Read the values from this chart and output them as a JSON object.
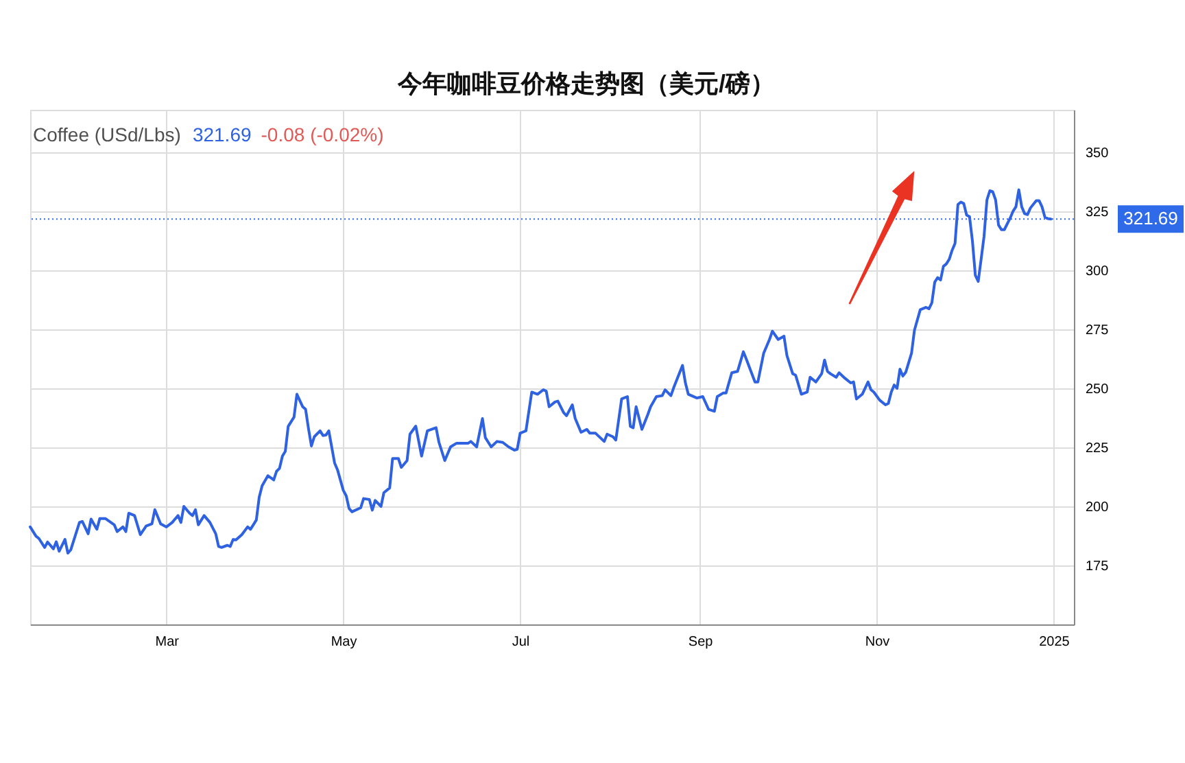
{
  "chart_data": {
    "type": "line",
    "title": "今年咖啡豆价格走势图（美元/磅）",
    "annotations": [
      "Coffee (USd/Lbs)",
      "321.69",
      "-0.08 (-0.02%)"
    ],
    "x": [
      "2024-01-14",
      "2024-01-16",
      "2024-01-17",
      "2024-01-19",
      "2024-01-20",
      "2024-01-22",
      "2024-01-23",
      "2024-01-24",
      "2024-01-26",
      "2024-01-27",
      "2024-01-28",
      "2024-01-31",
      "2024-02-01",
      "2024-02-03",
      "2024-02-04",
      "2024-02-06",
      "2024-02-07",
      "2024-02-09",
      "2024-02-12",
      "2024-02-13",
      "2024-02-15",
      "2024-02-16",
      "2024-02-17",
      "2024-02-19",
      "2024-02-21",
      "2024-02-23",
      "2024-02-25",
      "2024-02-26",
      "2024-02-28",
      "2024-03-01",
      "2024-03-03",
      "2024-03-05",
      "2024-03-06",
      "2024-03-07",
      "2024-03-09",
      "2024-03-10",
      "2024-03-11",
      "2024-03-12",
      "2024-03-14",
      "2024-03-16",
      "2024-03-18",
      "2024-03-19",
      "2024-03-20",
      "2024-03-22",
      "2024-03-23",
      "2024-03-24",
      "2024-03-25",
      "2024-03-27",
      "2024-03-29",
      "2024-03-30",
      "2024-04-01",
      "2024-04-02",
      "2024-04-03",
      "2024-04-05",
      "2024-04-07",
      "2024-04-08",
      "2024-04-09",
      "2024-04-10",
      "2024-04-11",
      "2024-04-12",
      "2024-04-14",
      "2024-04-15",
      "2024-04-17",
      "2024-04-18",
      "2024-04-19",
      "2024-04-20",
      "2024-04-21",
      "2024-04-23",
      "2024-04-24",
      "2024-04-25",
      "2024-04-26",
      "2024-04-27",
      "2024-04-28",
      "2024-04-29",
      "2024-05-01",
      "2024-05-02",
      "2024-05-03",
      "2024-05-04",
      "2024-05-07",
      "2024-05-08",
      "2024-05-10",
      "2024-05-11",
      "2024-05-12",
      "2024-05-14",
      "2024-05-15",
      "2024-05-17",
      "2024-05-18",
      "2024-05-20",
      "2024-05-21",
      "2024-05-23",
      "2024-05-24",
      "2024-05-26",
      "2024-05-28",
      "2024-05-30",
      "2024-06-02",
      "2024-06-03",
      "2024-06-05",
      "2024-06-07",
      "2024-06-09",
      "2024-06-13",
      "2024-06-14",
      "2024-06-16",
      "2024-06-18",
      "2024-06-19",
      "2024-06-21",
      "2024-06-23",
      "2024-06-25",
      "2024-06-27",
      "2024-06-29",
      "2024-06-30",
      "2024-07-01",
      "2024-07-03",
      "2024-07-05",
      "2024-07-07",
      "2024-07-09",
      "2024-07-10",
      "2024-07-11",
      "2024-07-13",
      "2024-07-14",
      "2024-07-16",
      "2024-07-17",
      "2024-07-19",
      "2024-07-20",
      "2024-07-22",
      "2024-07-24",
      "2024-07-25",
      "2024-07-27",
      "2024-07-30",
      "2024-07-31",
      "2024-08-02",
      "2024-08-03",
      "2024-08-05",
      "2024-08-07",
      "2024-08-08",
      "2024-08-09",
      "2024-08-10",
      "2024-08-12",
      "2024-08-14",
      "2024-08-15",
      "2024-08-17",
      "2024-08-19",
      "2024-08-20",
      "2024-08-22",
      "2024-08-23",
      "2024-08-26",
      "2024-08-27",
      "2024-08-28",
      "2024-08-31",
      "2024-09-02",
      "2024-09-04",
      "2024-09-06",
      "2024-09-07",
      "2024-09-09",
      "2024-09-10",
      "2024-09-12",
      "2024-09-14",
      "2024-09-16",
      "2024-09-17",
      "2024-09-20",
      "2024-09-21",
      "2024-09-23",
      "2024-09-25",
      "2024-09-26",
      "2024-09-28",
      "2024-09-30",
      "2024-10-01",
      "2024-10-03",
      "2024-10-04",
      "2024-10-06",
      "2024-10-08",
      "2024-10-09",
      "2024-10-11",
      "2024-10-13",
      "2024-10-14",
      "2024-10-15",
      "2024-10-16",
      "2024-10-18",
      "2024-10-19",
      "2024-10-21",
      "2024-10-23",
      "2024-10-24",
      "2024-10-25",
      "2024-10-27",
      "2024-10-29",
      "2024-10-30",
      "2024-10-31",
      "2024-11-02",
      "2024-11-04",
      "2024-11-05",
      "2024-11-06",
      "2024-11-07",
      "2024-11-08",
      "2024-11-09",
      "2024-11-10",
      "2024-11-11",
      "2024-11-13",
      "2024-11-14",
      "2024-11-16",
      "2024-11-18",
      "2024-11-19",
      "2024-11-20",
      "2024-11-21",
      "2024-11-22",
      "2024-11-23",
      "2024-11-24",
      "2024-11-25",
      "2024-11-26",
      "2024-11-27",
      "2024-11-28",
      "2024-11-29",
      "2024-11-30",
      "2024-12-01",
      "2024-12-02",
      "2024-12-03",
      "2024-12-04",
      "2024-12-05",
      "2024-12-06",
      "2024-12-07",
      "2024-12-08",
      "2024-12-09",
      "2024-12-10",
      "2024-12-11",
      "2024-12-12",
      "2024-12-13",
      "2024-12-14",
      "2024-12-15",
      "2024-12-17",
      "2024-12-18",
      "2024-12-19",
      "2024-12-20",
      "2024-12-21",
      "2024-12-22",
      "2024-12-23",
      "2024-12-24",
      "2024-12-26",
      "2024-12-27",
      "2024-12-28",
      "2024-12-29",
      "2024-12-30",
      "2024-12-31"
    ],
    "series": [
      {
        "color": "#2f62e0",
        "values": [
          191.3,
          187.4,
          186.4,
          182.6,
          184.9,
          182,
          185,
          181,
          186,
          180.2,
          181.6,
          193.2,
          193.6,
          188.4,
          194.6,
          190.3,
          194.8,
          194.8,
          192.2,
          189.3,
          191.3,
          189.3,
          197.1,
          196.1,
          188,
          191.7,
          192.6,
          198.6,
          192.6,
          191.3,
          193.2,
          196.1,
          193.2,
          200,
          197.1,
          196.1,
          198.6,
          192.2,
          196.1,
          193.2,
          188.4,
          183,
          182.6,
          183.5,
          183,
          186,
          185.8,
          188,
          191.3,
          190.3,
          194.2,
          203.9,
          208.7,
          213,
          211.2,
          214.9,
          216.1,
          221.3,
          223.3,
          233.9,
          237.8,
          247.5,
          242.2,
          241.1,
          232.9,
          225.6,
          229.5,
          232,
          230,
          230.2,
          232,
          225.2,
          218.4,
          215.5,
          206.8,
          204.5,
          199.1,
          197.7,
          199.4,
          203.3,
          202.9,
          198.4,
          202.5,
          200,
          205.8,
          207.8,
          220.3,
          220.3,
          216.5,
          219.4,
          230.6,
          234,
          221.3,
          232,
          233.3,
          227.1,
          219.4,
          225.2,
          226.7,
          226.7,
          227.5,
          225.2,
          237.2,
          229.1,
          225.2,
          227.5,
          227.1,
          225.2,
          223.8,
          224.2,
          231,
          232,
          248.4,
          247.5,
          249.4,
          248.8,
          242.2,
          244.2,
          244.6,
          239.7,
          238.4,
          243,
          237.2,
          231.4,
          232.6,
          231,
          231,
          227.5,
          230.6,
          229.5,
          228.1,
          245.5,
          246.5,
          233.9,
          233.3,
          242.2,
          232.6,
          238.8,
          242.2,
          246.5,
          246.9,
          249.4,
          246.9,
          250.4,
          259.7,
          252.3,
          247.5,
          245.9,
          246.5,
          241.1,
          240.3,
          246.5,
          248,
          248,
          256.6,
          257.2,
          265.5,
          262.4,
          252.7,
          252.7,
          264.9,
          270.7,
          274.2,
          270.7,
          272.1,
          264,
          256.2,
          255.6,
          247.5,
          248.4,
          254.7,
          252.7,
          256.2,
          262,
          257.2,
          256.2,
          254.7,
          256.6,
          254.3,
          252.3,
          252.7,
          245.5,
          247.5,
          252.7,
          249.4,
          248.4,
          245,
          243,
          243.6,
          248.4,
          251.4,
          250,
          258.1,
          255.2,
          256.8,
          264.9,
          274.6,
          283.3,
          284.3,
          283.7,
          286.2,
          295,
          296.9,
          295.9,
          301.7,
          302.7,
          304.7,
          308.5,
          311.4,
          327.9,
          328.9,
          328.3,
          323.4,
          322.7,
          312.4,
          297.9,
          295.3,
          304.7,
          314.3,
          329.8,
          333.7,
          333.3,
          329.8,
          319.2,
          317.2,
          317.2,
          322.1,
          325,
          326.9,
          334.1,
          326.9,
          324,
          323.6,
          326.4,
          329.5,
          329.5,
          326.9,
          322.5,
          321.9,
          321.69
        ]
      }
    ],
    "xlim": [
      "2024-01-14",
      "2025-01-08"
    ],
    "xticks": [
      {
        "value": "2024-03-01",
        "label": "Mar"
      },
      {
        "value": "2024-05-01",
        "label": "May"
      },
      {
        "value": "2024-07-01",
        "label": "Jul"
      },
      {
        "value": "2024-09-01",
        "label": "Sep"
      },
      {
        "value": "2024-11-01",
        "label": "Nov"
      },
      {
        "value": "2025-01-01",
        "label": "2025"
      }
    ],
    "ylim": [
      150,
      368
    ],
    "yticks": [
      175,
      200,
      225,
      250,
      275,
      300,
      325,
      350
    ],
    "ref_lines": [
      {
        "axis": "y",
        "value": 321.69,
        "label": "321.69",
        "color": "#2f6be8",
        "line_style": "dotted"
      }
    ],
    "grid": true
  }
}
